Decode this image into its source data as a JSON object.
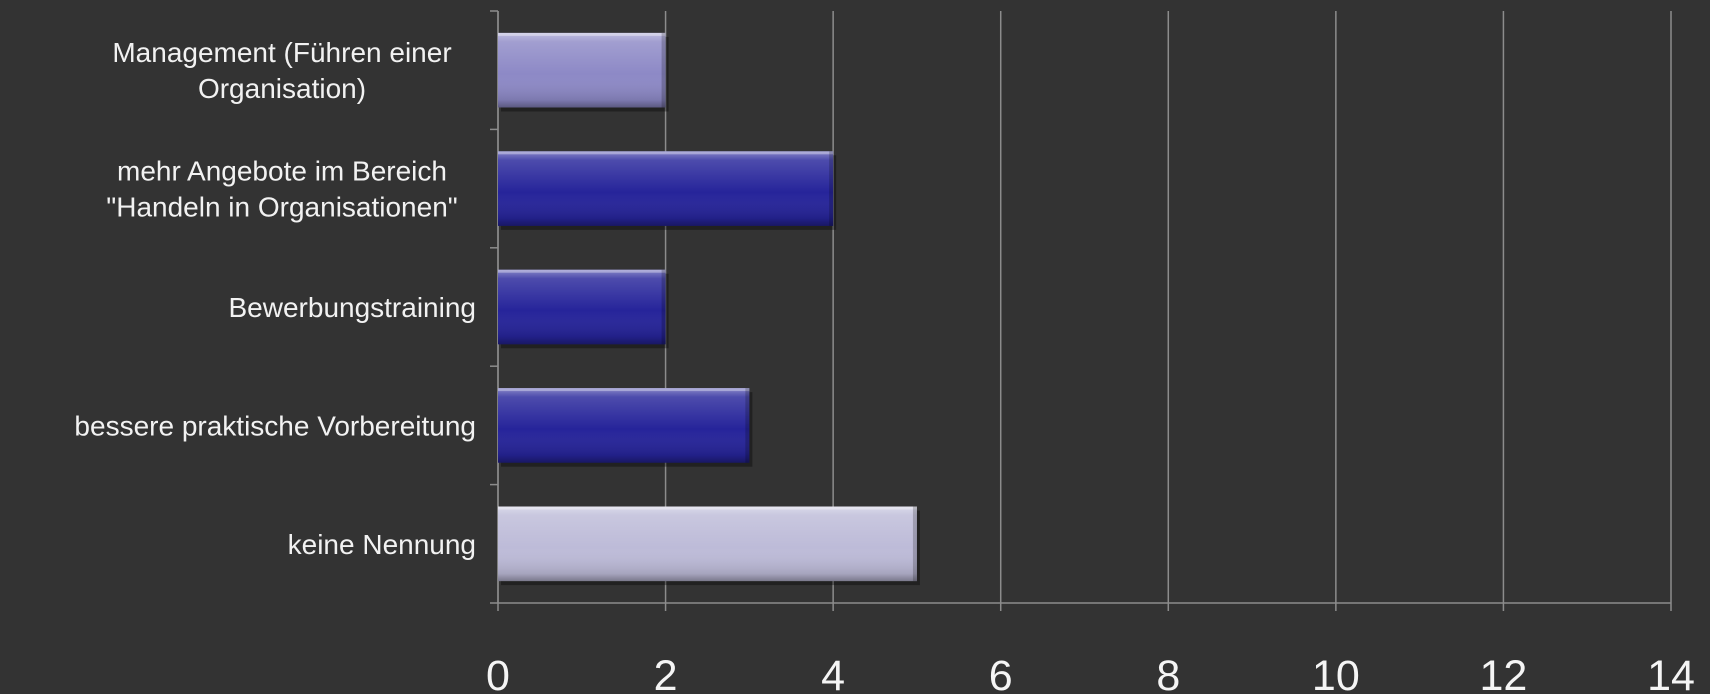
{
  "chart_data": {
    "type": "bar",
    "orientation": "horizontal",
    "categories": [
      "Management (Führen einer Organisation)",
      "mehr Angebote im Bereich \"Handeln in Organisationen\"",
      "Bewerbungstraining",
      "bessere praktische Vorbereitung",
      "keine Nennung"
    ],
    "category_lines": [
      [
        "Management (Führen einer",
        "Organisation)"
      ],
      [
        "mehr Angebote im Bereich",
        "\"Handeln in Organisationen\""
      ],
      [
        "Bewerbungstraining"
      ],
      [
        "bessere praktische Vorbereitung"
      ],
      [
        "keine Nennung"
      ]
    ],
    "values": [
      2,
      4,
      2,
      3,
      5
    ],
    "xlim": [
      0,
      14
    ],
    "x_ticks": [
      0,
      2,
      4,
      6,
      8,
      10,
      12,
      14
    ],
    "grid": true,
    "legend": "none",
    "bar_colors": [
      "#8d89c6",
      "#26249a",
      "#26249a",
      "#26249a",
      "#bdbbd8"
    ]
  }
}
